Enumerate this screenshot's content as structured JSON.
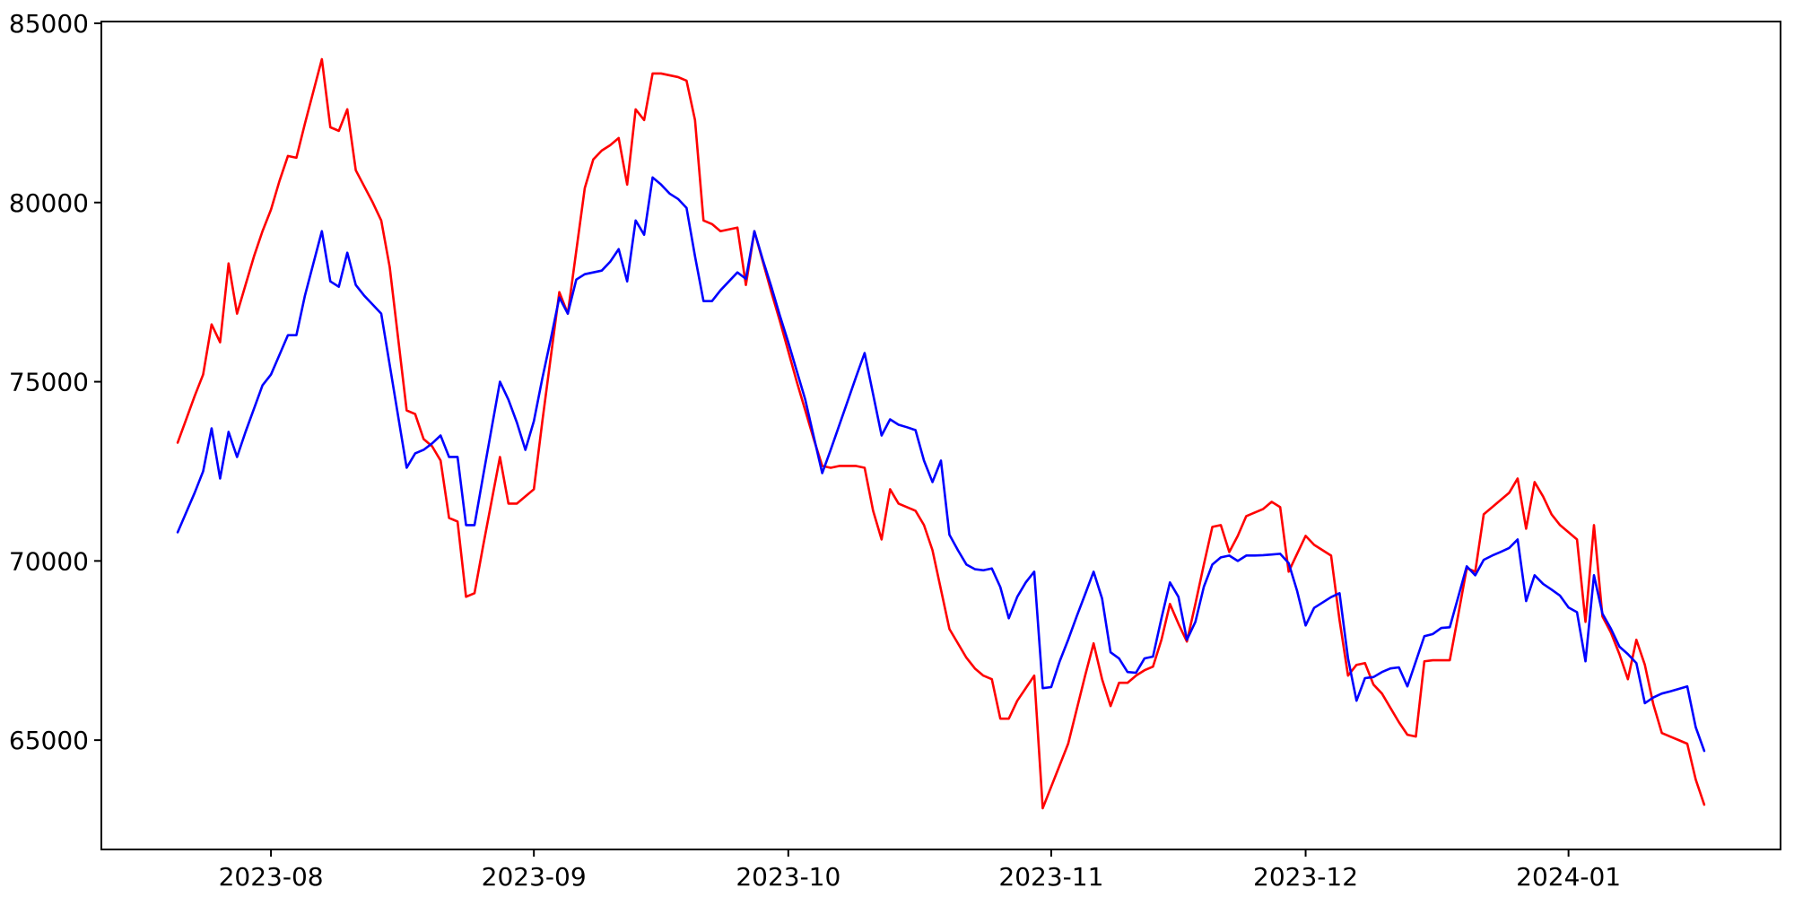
{
  "figure": {
    "background": "#ffffff",
    "spine_color": "#000000",
    "tick_color": "#000000"
  },
  "chart_data": {
    "type": "line",
    "title": "",
    "xlabel": "",
    "ylabel": "",
    "legend_position": "none",
    "grid": false,
    "x_start_date": "2023-07-21",
    "x_end_date": "2024-01-17",
    "frequency": "daily",
    "n_points": 181,
    "xlim_days": [
      -9,
      189
    ],
    "ylim": [
      61950,
      85050
    ],
    "xticks": [
      "2023-08",
      "2023-09",
      "2023-10",
      "2023-11",
      "2023-12",
      "2024-01"
    ],
    "yticks": [
      65000,
      70000,
      75000,
      80000,
      85000
    ],
    "series": [
      {
        "name": "red-series",
        "color": "#ff0000",
        "values": [
          73300,
          73950,
          74600,
          75200,
          76600,
          76100,
          78300,
          76900,
          77700,
          78500,
          79200,
          79800,
          80600,
          81300,
          81250,
          82200,
          83100,
          84000,
          82100,
          82000,
          82600,
          80900,
          80450,
          80000,
          79500,
          78200,
          76200,
          74200,
          74100,
          73400,
          73200,
          72800,
          71200,
          71100,
          69000,
          69100,
          70400,
          71650,
          72900,
          71600,
          71600,
          71800,
          72000,
          73900,
          75700,
          77500,
          76900,
          78650,
          80400,
          81200,
          81450,
          81600,
          81800,
          80500,
          82600,
          82300,
          83600,
          83600,
          83550,
          83500,
          83400,
          82300,
          79500,
          79400,
          79200,
          79250,
          79300,
          77700,
          79200,
          78350,
          77500,
          76700,
          75850,
          75000,
          74200,
          73400,
          72650,
          72600,
          72650,
          72650,
          72650,
          72600,
          71400,
          70600,
          72000,
          71600,
          71500,
          71400,
          71000,
          70300,
          69200,
          68100,
          67700,
          67300,
          67000,
          66800,
          66700,
          65600,
          65600,
          66100,
          66450,
          66800,
          63100,
          63700,
          64300,
          64900,
          65850,
          66800,
          67700,
          66700,
          65950,
          66600,
          66600,
          66800,
          66950,
          67050,
          67800,
          68800,
          68250,
          67750,
          68800,
          69900,
          70950,
          71000,
          70250,
          70700,
          71250,
          71350,
          71450,
          71650,
          71500,
          69700,
          70200,
          70700,
          70450,
          70300,
          70150,
          68350,
          66800,
          67100,
          67150,
          66550,
          66300,
          65900,
          65500,
          65150,
          65100,
          67200,
          67230,
          67230,
          67230,
          68500,
          69800,
          69700,
          71300,
          71500,
          71700,
          71900,
          72300,
          70900,
          72200,
          71800,
          71300,
          71000,
          70800,
          70600,
          68300,
          71000,
          68450,
          68000,
          67400,
          66700,
          67800,
          67100,
          66000,
          65200,
          65100,
          65000,
          64900,
          63900,
          63200
        ]
      },
      {
        "name": "blue-series",
        "color": "#0000ff",
        "values": [
          70800,
          71350,
          71900,
          72500,
          73700,
          72300,
          73600,
          72900,
          73600,
          74250,
          74900,
          75200,
          75750,
          76300,
          76300,
          77400,
          78300,
          79200,
          77800,
          77650,
          78600,
          77700,
          77400,
          77150,
          76900,
          75470,
          74030,
          72600,
          73000,
          73100,
          73280,
          73500,
          72900,
          72900,
          71000,
          71000,
          72350,
          73680,
          75000,
          74500,
          73860,
          73100,
          73900,
          75100,
          76200,
          77350,
          76900,
          77850,
          78000,
          78050,
          78100,
          78350,
          78700,
          77800,
          79500,
          79100,
          80700,
          80500,
          80250,
          80100,
          79850,
          78500,
          77250,
          77250,
          77550,
          77800,
          78050,
          77870,
          79200,
          78400,
          77650,
          76850,
          76100,
          75300,
          74500,
          73470,
          72450,
          73100,
          73780,
          74460,
          75140,
          75800,
          74650,
          73500,
          73950,
          73800,
          73730,
          73650,
          72800,
          72200,
          72800,
          70730,
          70300,
          69900,
          69770,
          69740,
          69790,
          69270,
          68400,
          69000,
          69400,
          69700,
          66450,
          66480,
          67200,
          67800,
          68450,
          69070,
          69700,
          68950,
          67450,
          67280,
          66900,
          66880,
          67280,
          67330,
          68400,
          69400,
          69000,
          67800,
          68300,
          69280,
          69900,
          70100,
          70150,
          70000,
          70150,
          70150,
          70160,
          70180,
          70200,
          69940,
          69160,
          68200,
          68690,
          68840,
          68990,
          69100,
          67280,
          66100,
          66730,
          66760,
          66900,
          67000,
          67030,
          66500,
          67200,
          67900,
          67960,
          68130,
          68150,
          69000,
          69850,
          69600,
          70030,
          70150,
          70250,
          70360,
          70600,
          68880,
          69600,
          69360,
          69200,
          69030,
          68700,
          68570,
          67200,
          69600,
          68530,
          68110,
          67610,
          67400,
          67150,
          66030,
          66190,
          66300,
          66360,
          66430,
          66500,
          65360,
          64700
        ]
      }
    ]
  }
}
